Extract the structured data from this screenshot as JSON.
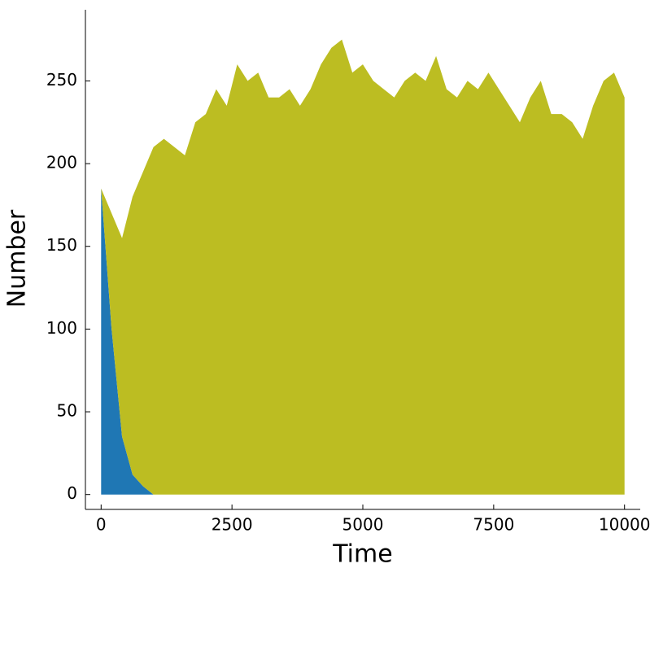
{
  "chart_data": {
    "type": "stacked-area",
    "xlabel": "Time",
    "ylabel": "Number",
    "x": [
      0,
      200,
      400,
      600,
      800,
      1000,
      1200,
      1400,
      1600,
      1800,
      2000,
      2200,
      2400,
      2600,
      2800,
      3000,
      3200,
      3400,
      3600,
      3800,
      4000,
      4200,
      4400,
      4600,
      4800,
      5000,
      5200,
      5400,
      5600,
      5800,
      6000,
      6200,
      6400,
      6600,
      6800,
      7000,
      7200,
      7400,
      7600,
      7800,
      8000,
      8200,
      8400,
      8600,
      8800,
      9000,
      9200,
      9400,
      9600,
      9800,
      10000
    ],
    "series": [
      {
        "color": "#1f77b4",
        "values": [
          185,
          100,
          35,
          12,
          5,
          0,
          0,
          0,
          0,
          0,
          0,
          0,
          0,
          0,
          0,
          0,
          0,
          0,
          0,
          0,
          0,
          0,
          0,
          0,
          0,
          0,
          0,
          0,
          0,
          0,
          0,
          0,
          0,
          0,
          0,
          0,
          0,
          0,
          0,
          0,
          0,
          0,
          0,
          0,
          0,
          0,
          0,
          0,
          0,
          0,
          0
        ]
      },
      {
        "color": "#bcbd22",
        "values": [
          0,
          70,
          120,
          168,
          190,
          210,
          215,
          210,
          205,
          225,
          230,
          245,
          235,
          260,
          250,
          255,
          240,
          240,
          245,
          235,
          245,
          260,
          270,
          275,
          255,
          260,
          250,
          245,
          240,
          250,
          255,
          250,
          265,
          245,
          240,
          250,
          245,
          255,
          245,
          235,
          225,
          240,
          250,
          230,
          230,
          225,
          215,
          235,
          250,
          255,
          240
        ]
      }
    ],
    "xlim": [
      -300,
      10300
    ],
    "ylim": [
      -9,
      293
    ],
    "xticks": [
      0,
      2500,
      5000,
      7500,
      10000
    ],
    "yticks": [
      0,
      50,
      100,
      150,
      200,
      250
    ],
    "grid": false
  }
}
